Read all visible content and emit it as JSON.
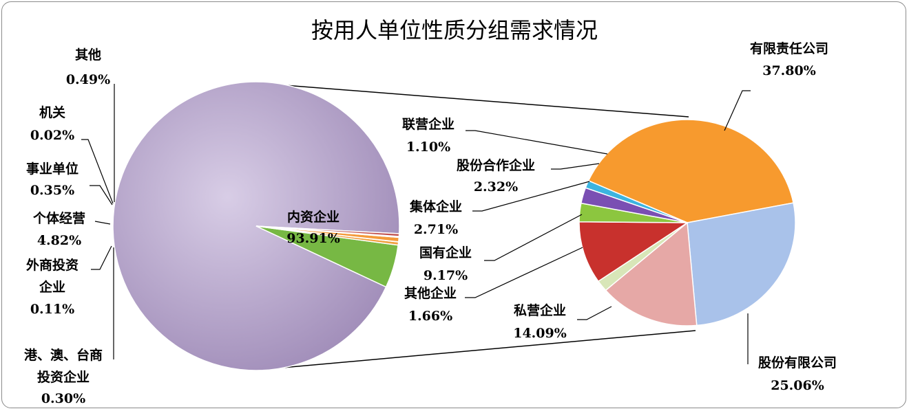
{
  "chart_data": {
    "type": "bar-of-pie",
    "title": "按用人单位性质分组需求情况",
    "main_pie": {
      "slices": [
        {
          "name": "内资企业",
          "value": 93.91,
          "label": "93.91%",
          "color": "#b3a2c7"
        },
        {
          "name": "个体经营",
          "value": 4.82,
          "label": "4.82%",
          "color": "#77b844"
        },
        {
          "name": "事业单位",
          "value": 0.35,
          "label": "0.35%",
          "color": "#f0a040"
        },
        {
          "name": "机关",
          "value": 0.02,
          "label": "0.02%",
          "color": "#d9534f"
        },
        {
          "name": "其他",
          "value": 0.49,
          "label": "0.49%",
          "color": "#f49a3a"
        },
        {
          "name": "外商投资企业",
          "value": 0.11,
          "label": "0.11%",
          "color": "#5b8bd0"
        },
        {
          "name": "港、澳、台商投资企业",
          "value": 0.3,
          "label": "0.30%",
          "color": "#c0504d"
        }
      ]
    },
    "secondary_pie": {
      "of": "内资企业",
      "slices": [
        {
          "name": "有限责任公司",
          "value": 37.8,
          "label": "37.80%",
          "color": "#f79a2e"
        },
        {
          "name": "股份有限公司",
          "value": 25.06,
          "label": "25.06%",
          "color": "#a9c2ea"
        },
        {
          "name": "私营企业",
          "value": 14.09,
          "label": "14.09%",
          "color": "#e6a8a6"
        },
        {
          "name": "其他企业",
          "value": 1.66,
          "label": "1.66%",
          "color": "#d8e6b8"
        },
        {
          "name": "国有企业",
          "value": 9.17,
          "label": "9.17%",
          "color": "#c8312d"
        },
        {
          "name": "集体企业",
          "value": 2.71,
          "label": "2.71%",
          "color": "#8cc63f"
        },
        {
          "name": "股份合作企业",
          "value": 2.32,
          "label": "2.32%",
          "color": "#7a4fb3"
        },
        {
          "name": "联营企业",
          "value": 1.1,
          "label": "1.10%",
          "color": "#3cb4e0"
        }
      ]
    }
  }
}
